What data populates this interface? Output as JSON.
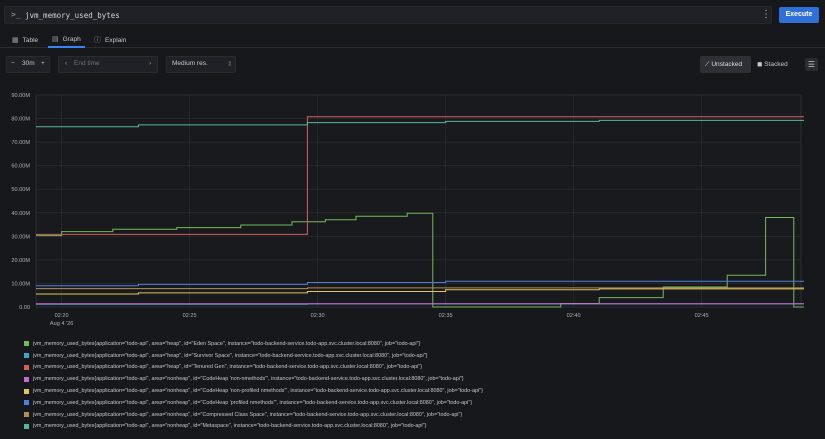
{
  "query": {
    "prompt_icon": ">_",
    "text": "jvm_memory_used_bytes",
    "menu_icon": "kebab-menu-icon",
    "execute_label": "Execute"
  },
  "tabs": [
    {
      "label": "Table",
      "icon": "table-icon",
      "active": false
    },
    {
      "label": "Graph",
      "icon": "graph-icon",
      "active": true
    },
    {
      "label": "Explain",
      "icon": "explain-icon",
      "active": false
    }
  ],
  "toolbar": {
    "range_minus": "−",
    "range_value": "30m",
    "range_plus": "+",
    "end_time_placeholder": "End time",
    "resolution": "Medium res.",
    "unstacked_label": "Unstacked",
    "stacked_label": "Stacked",
    "accent": "#2f6fd6"
  },
  "chart_data": {
    "type": "line",
    "y_ticks": [
      "0.00",
      "10.00M",
      "20.00M",
      "30.00M",
      "40.00M",
      "50.00M",
      "60.00M",
      "70.00M",
      "80.00M",
      "90.00M"
    ],
    "ylim": [
      0,
      90000000
    ],
    "x_ticks": [
      {
        "t": "02:20",
        "sub": "Aug 4 '26"
      },
      {
        "t": "02:25",
        "sub": ""
      },
      {
        "t": "02:30",
        "sub": ""
      },
      {
        "t": "02:35",
        "sub": ""
      },
      {
        "t": "02:40",
        "sub": ""
      },
      {
        "t": "02:45",
        "sub": ""
      }
    ],
    "xlim_minutes": [
      0,
      30
    ],
    "grid": true,
    "series": [
      {
        "name": "jvm_memory_used_bytes{application=\"todo-api\", area=\"heap\", id=\"Eden Space\", instance=\"todo-backend-service.todo-app.svc.cluster.local:8080\", job=\"todo-api\"}",
        "color": "#74b95a",
        "points": [
          [
            0,
            30.3
          ],
          [
            1,
            30.3
          ],
          [
            1,
            32
          ],
          [
            3,
            32
          ],
          [
            3,
            33
          ],
          [
            5.5,
            33
          ],
          [
            5.5,
            33.7
          ],
          [
            8,
            33.7
          ],
          [
            8,
            34.8
          ],
          [
            10,
            34.8
          ],
          [
            10,
            36.2
          ],
          [
            11.3,
            36.2
          ],
          [
            11.3,
            37
          ],
          [
            12.5,
            37
          ],
          [
            12.5,
            38.5
          ],
          [
            14.5,
            38.5
          ],
          [
            14.5,
            39.8
          ],
          [
            15.5,
            39.8
          ],
          [
            15.5,
            0
          ],
          [
            20.5,
            0
          ],
          [
            20.5,
            1.5
          ],
          [
            22,
            1.5
          ],
          [
            22,
            4
          ],
          [
            24.5,
            4
          ],
          [
            24.5,
            8.5
          ],
          [
            27,
            8.5
          ],
          [
            27,
            13.5
          ],
          [
            28.5,
            13.5
          ],
          [
            28.5,
            38
          ],
          [
            29.6,
            38
          ],
          [
            29.6,
            0
          ],
          [
            30,
            0
          ]
        ]
      },
      {
        "name": "jvm_memory_used_bytes{application=\"todo-api\", area=\"heap\", id=\"Survivor Space\", instance=\"todo-backend-service.todo-app.svc.cluster.local:8080\", job=\"todo-api\"}",
        "color": "#3aa7c7",
        "points": [
          [
            0,
            1.2
          ],
          [
            10.6,
            1.2
          ],
          [
            10.6,
            1.3
          ],
          [
            30,
            1.3
          ]
        ]
      },
      {
        "name": "jvm_memory_used_bytes{application=\"todo-api\", area=\"heap\", id=\"Tenured Gen\", instance=\"todo-backend-service.todo-app.svc.cluster.local:8080\", job=\"todo-api\"}",
        "color": "#d45f58",
        "points": [
          [
            0,
            30.8
          ],
          [
            10.6,
            30.8
          ],
          [
            10.6,
            80.8
          ],
          [
            30,
            80.8
          ]
        ]
      },
      {
        "name": "jvm_memory_used_bytes{application=\"todo-api\", area=\"nonheap\", id=\"CodeHeap 'non-nmethods'\", instance=\"todo-backend-service.todo-app.svc.cluster.local:8080\", job=\"todo-api\"}",
        "color": "#c66bd4",
        "points": [
          [
            0,
            1.4
          ],
          [
            30,
            1.4
          ]
        ]
      },
      {
        "name": "jvm_memory_used_bytes{application=\"todo-api\", area=\"nonheap\", id=\"CodeHeap 'non-profiled nmethods'\", instance=\"todo-backend-service.todo-app.svc.cluster.local:8080\", job=\"todo-api\"}",
        "color": "#e0c75a",
        "points": [
          [
            0,
            5.5
          ],
          [
            4,
            5.5
          ],
          [
            4,
            6
          ],
          [
            10.6,
            6
          ],
          [
            10.6,
            6.6
          ],
          [
            16,
            6.6
          ],
          [
            16,
            7.3
          ],
          [
            22,
            7.3
          ],
          [
            22,
            7.7
          ],
          [
            30,
            7.7
          ]
        ]
      },
      {
        "name": "jvm_memory_used_bytes{application=\"todo-api\", area=\"nonheap\", id=\"CodeHeap 'profiled nmethods'\", instance=\"todo-backend-service.todo-app.svc.cluster.local:8080\", job=\"todo-api\"}",
        "color": "#4f7fd8",
        "points": [
          [
            0,
            9
          ],
          [
            4,
            9
          ],
          [
            4,
            9.6
          ],
          [
            10.6,
            9.6
          ],
          [
            10.6,
            10.4
          ],
          [
            16,
            10.4
          ],
          [
            16,
            10.9
          ],
          [
            30,
            10.9
          ]
        ]
      },
      {
        "name": "jvm_memory_used_bytes{application=\"todo-api\", area=\"nonheap\", id=\"Compressed Class Space\", instance=\"todo-backend-service.todo-app.svc.cluster.local:8080\", job=\"todo-api\"}",
        "color": "#b58a5a",
        "points": [
          [
            0,
            7.8
          ],
          [
            10.6,
            7.8
          ],
          [
            10.6,
            8.1
          ],
          [
            30,
            8.1
          ]
        ]
      },
      {
        "name": "jvm_memory_used_bytes{application=\"todo-api\", area=\"nonheap\", id=\"Metaspace\", instance=\"todo-backend-service.todo-app.svc.cluster.local:8080\", job=\"todo-api\"}",
        "color": "#56b89a",
        "points": [
          [
            0,
            76.5
          ],
          [
            4,
            76.5
          ],
          [
            4,
            77.3
          ],
          [
            10.6,
            77.3
          ],
          [
            10.6,
            78.3
          ],
          [
            16,
            78.3
          ],
          [
            16,
            78.8
          ],
          [
            22,
            78.8
          ],
          [
            22,
            79.2
          ],
          [
            30,
            79.2
          ]
        ]
      }
    ]
  }
}
